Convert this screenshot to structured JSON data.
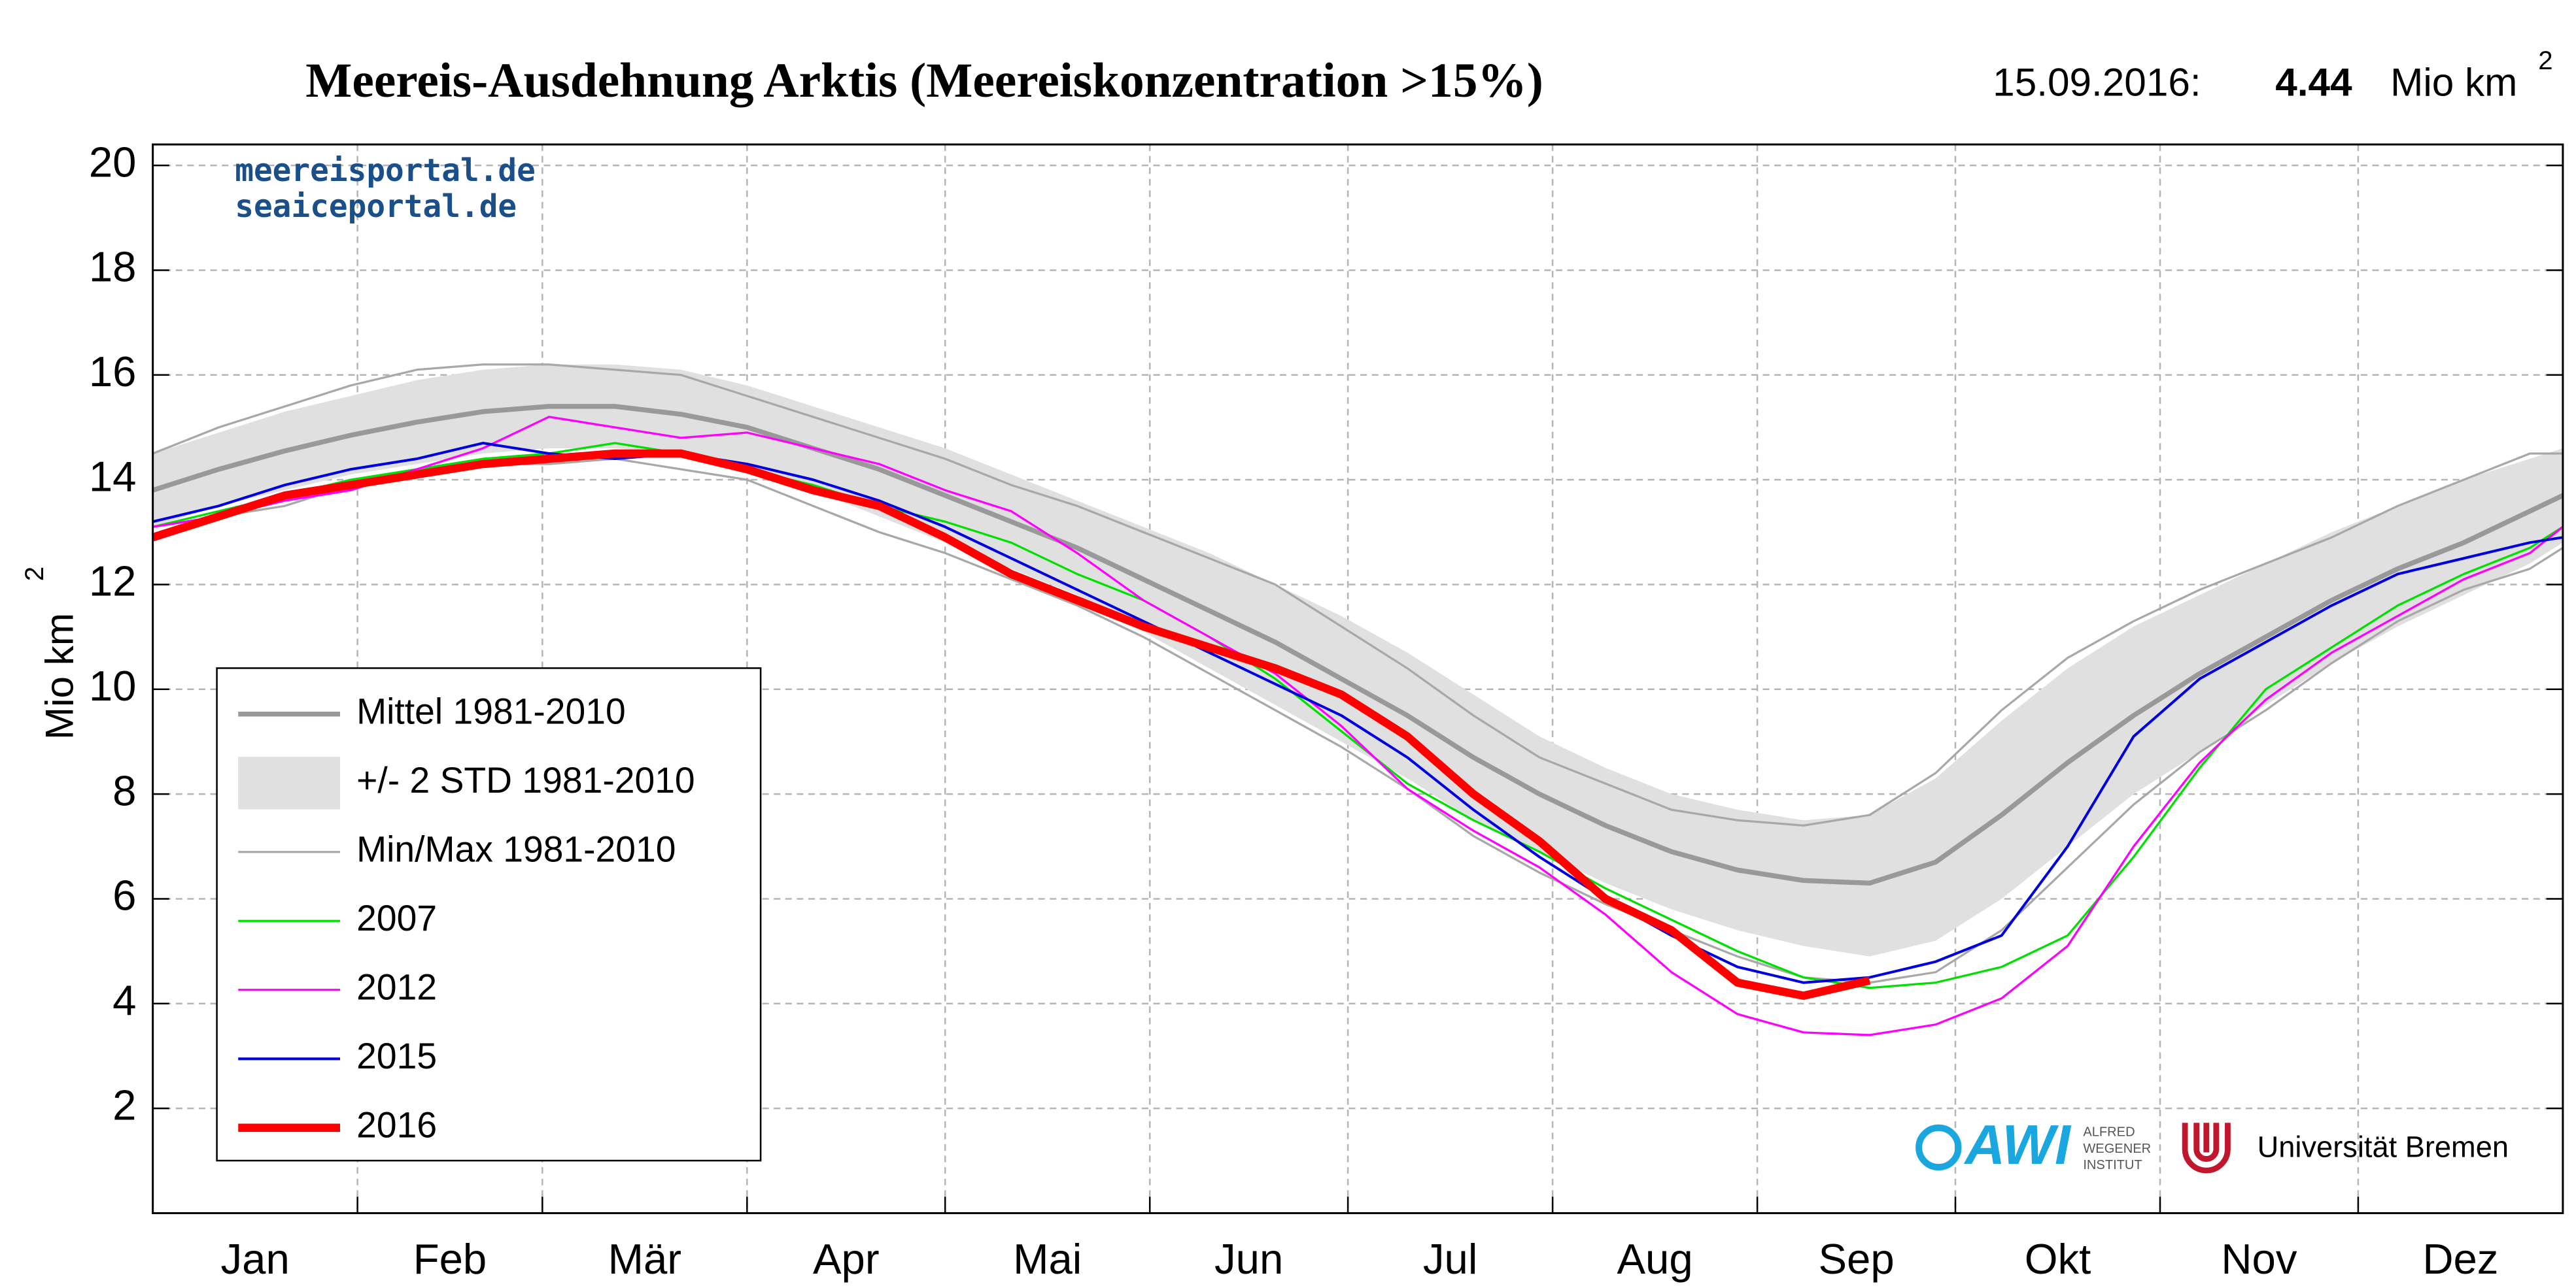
{
  "chart_data": {
    "type": "line",
    "title": "Meereis-Ausdehnung Arktis (Meereiskonzentration >15%)",
    "date_label": "15.09.2016:",
    "current_value": 4.44,
    "unit": "Mio km",
    "unit_power": "2",
    "ylabel": "Mio km",
    "ylabel_power": "2",
    "watermarks": [
      "meereisportal.de",
      "seaiceportal.de"
    ],
    "logos": {
      "awi": "AWI",
      "awi_text": [
        "ALFRED",
        "WEGENER",
        "INSTITUT"
      ],
      "bremen": "Universität Bremen"
    },
    "categories": [
      "Jan",
      "Feb",
      "Mär",
      "Apr",
      "Mai",
      "Jun",
      "Jul",
      "Aug",
      "Sep",
      "Okt",
      "Nov",
      "Dez"
    ],
    "xlim": [
      0,
      365
    ],
    "xticks": [
      31,
      59,
      90,
      120,
      151,
      181,
      212,
      243,
      273,
      304,
      334
    ],
    "ylim": [
      0,
      20.4
    ],
    "yticks": [
      2,
      4,
      6,
      8,
      10,
      12,
      14,
      16,
      18,
      20
    ],
    "grid": true,
    "x": [
      0,
      10,
      20,
      30,
      40,
      50,
      60,
      70,
      80,
      90,
      100,
      110,
      120,
      130,
      140,
      150,
      160,
      170,
      180,
      190,
      200,
      210,
      220,
      230,
      240,
      250,
      260,
      270,
      280,
      290,
      300,
      310,
      320,
      330,
      340,
      350,
      360,
      365
    ],
    "series": [
      {
        "name": "Mittel 1981-2010",
        "kind": "line",
        "color": "#999999",
        "width": 3,
        "values": [
          13.8,
          14.2,
          14.55,
          14.85,
          15.1,
          15.3,
          15.4,
          15.4,
          15.25,
          15.0,
          14.6,
          14.2,
          13.7,
          13.2,
          12.7,
          12.1,
          11.5,
          10.9,
          10.2,
          9.5,
          8.7,
          8.0,
          7.4,
          6.9,
          6.55,
          6.35,
          6.3,
          6.7,
          7.6,
          8.6,
          9.5,
          10.3,
          11.0,
          11.7,
          12.3,
          12.8,
          13.4,
          13.7
        ]
      },
      {
        "name": "+/- 2 STD 1981-2010",
        "kind": "band",
        "color": "#e0e0e0",
        "upper": [
          14.5,
          14.9,
          15.3,
          15.6,
          15.9,
          16.1,
          16.2,
          16.2,
          16.1,
          15.8,
          15.4,
          15.0,
          14.6,
          14.1,
          13.6,
          13.1,
          12.6,
          12.0,
          11.4,
          10.7,
          9.9,
          9.1,
          8.5,
          8.0,
          7.7,
          7.5,
          7.6,
          8.3,
          9.4,
          10.4,
          11.2,
          11.8,
          12.4,
          13.0,
          13.5,
          14.0,
          14.4,
          14.6
        ],
        "lower": [
          13.1,
          13.5,
          13.8,
          14.1,
          14.3,
          14.5,
          14.6,
          14.6,
          14.5,
          14.2,
          13.8,
          13.3,
          12.8,
          12.3,
          11.8,
          11.1,
          10.4,
          9.7,
          9.0,
          8.3,
          7.5,
          6.9,
          6.3,
          5.8,
          5.4,
          5.1,
          4.9,
          5.2,
          6.0,
          7.0,
          8.0,
          8.8,
          9.7,
          10.5,
          11.2,
          11.8,
          12.4,
          12.8
        ]
      },
      {
        "name": "Min/Max 1981-2010",
        "kind": "pair",
        "color": "#a8a8a8",
        "width": 1.3,
        "upper": [
          14.5,
          15.0,
          15.4,
          15.8,
          16.1,
          16.2,
          16.2,
          16.1,
          16.0,
          15.6,
          15.2,
          14.8,
          14.4,
          13.9,
          13.5,
          13.0,
          12.5,
          12.0,
          11.2,
          10.4,
          9.5,
          8.7,
          8.2,
          7.7,
          7.5,
          7.4,
          7.6,
          8.4,
          9.6,
          10.6,
          11.3,
          11.9,
          12.4,
          12.9,
          13.5,
          14.0,
          14.5,
          14.5
        ],
        "lower": [
          13.1,
          13.3,
          13.5,
          13.9,
          14.1,
          14.3,
          14.3,
          14.4,
          14.2,
          14.0,
          13.5,
          13.0,
          12.6,
          12.1,
          11.6,
          11.0,
          10.3,
          9.6,
          8.9,
          8.1,
          7.2,
          6.5,
          5.9,
          5.4,
          4.9,
          4.5,
          4.4,
          4.6,
          5.4,
          6.6,
          7.8,
          8.8,
          9.6,
          10.5,
          11.3,
          11.9,
          12.3,
          12.7
        ]
      },
      {
        "name": "2007",
        "kind": "line",
        "color": "#00e000",
        "width": 1.3,
        "values": [
          13.1,
          13.4,
          13.7,
          14.0,
          14.2,
          14.4,
          14.5,
          14.7,
          14.5,
          14.2,
          13.9,
          13.5,
          13.2,
          12.8,
          12.2,
          11.7,
          11.0,
          10.2,
          9.2,
          8.2,
          7.5,
          6.9,
          6.2,
          5.6,
          5.0,
          4.5,
          4.3,
          4.4,
          4.7,
          5.3,
          6.8,
          8.5,
          10.0,
          10.8,
          11.6,
          12.2,
          12.7,
          13.1
        ]
      },
      {
        "name": "2012",
        "kind": "line",
        "color": "#ff00ff",
        "width": 1.3,
        "values": [
          13.1,
          13.3,
          13.6,
          13.8,
          14.2,
          14.6,
          15.2,
          15.0,
          14.8,
          14.9,
          14.6,
          14.3,
          13.8,
          13.4,
          12.6,
          11.7,
          11.0,
          10.3,
          9.3,
          8.1,
          7.3,
          6.6,
          5.7,
          4.6,
          3.8,
          3.45,
          3.4,
          3.6,
          4.1,
          5.1,
          7.0,
          8.6,
          9.8,
          10.7,
          11.4,
          12.1,
          12.6,
          13.1
        ]
      },
      {
        "name": "2015",
        "kind": "line",
        "color": "#0000e0",
        "width": 1.6,
        "values": [
          13.2,
          13.5,
          13.9,
          14.2,
          14.4,
          14.7,
          14.5,
          14.4,
          14.5,
          14.3,
          14.0,
          13.6,
          13.1,
          12.5,
          11.9,
          11.3,
          10.7,
          10.1,
          9.5,
          8.7,
          7.7,
          6.8,
          6.0,
          5.3,
          4.7,
          4.4,
          4.5,
          4.8,
          5.3,
          7.0,
          9.1,
          10.2,
          10.9,
          11.6,
          12.2,
          12.5,
          12.8,
          12.9
        ]
      },
      {
        "name": "2016",
        "kind": "line",
        "color": "#ff0000",
        "width": 5,
        "values": [
          12.9,
          13.3,
          13.7,
          13.9,
          14.1,
          14.3,
          14.4,
          14.5,
          14.5,
          14.2,
          13.8,
          13.5,
          12.9,
          12.2,
          11.7,
          11.2,
          10.8,
          10.4,
          9.9,
          9.1,
          8.0,
          7.1,
          6.0,
          5.4,
          4.4,
          4.15,
          4.44,
          null,
          null,
          null,
          null,
          null,
          null,
          null,
          null,
          null,
          null,
          null
        ]
      }
    ]
  }
}
